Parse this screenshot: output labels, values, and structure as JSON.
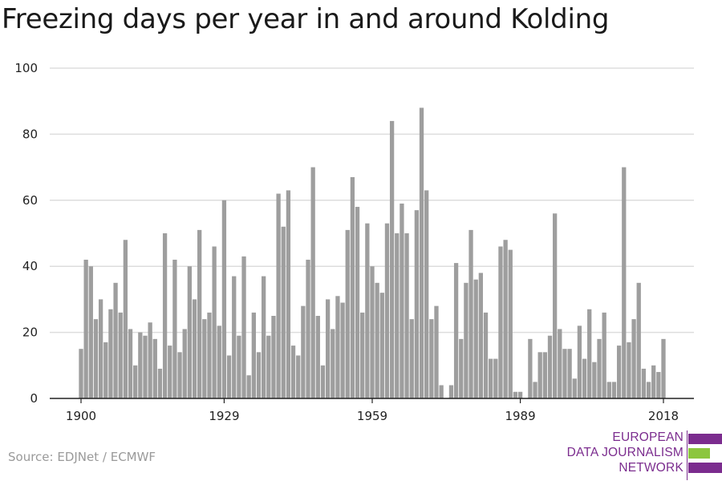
{
  "title": "Freezing days per year in and around Kolding",
  "source": "Source: EDJNet / ECMWF",
  "logo": {
    "lines": [
      "EUROPEAN",
      "DATA JOURNALISM",
      "NETWORK"
    ],
    "colors": {
      "purple": "#7b2c8e",
      "green": "#8cc63f"
    }
  },
  "colors": {
    "bar": "#9e9e9e",
    "grid": "#dddddd",
    "axis": "#222222",
    "tick_text": "#222222"
  },
  "chart_data": {
    "type": "bar",
    "title": "Freezing days per year in and around Kolding",
    "xlabel": "",
    "ylabel": "",
    "x_range": [
      1900,
      2018
    ],
    "ylim": [
      0,
      100
    ],
    "y_ticks": [
      0,
      20,
      40,
      60,
      80,
      100
    ],
    "x_ticks": [
      1900,
      1929,
      1959,
      1989,
      2018
    ],
    "grid": true,
    "x": [
      1900,
      1901,
      1902,
      1903,
      1904,
      1905,
      1906,
      1907,
      1908,
      1909,
      1910,
      1911,
      1912,
      1913,
      1914,
      1915,
      1916,
      1917,
      1918,
      1919,
      1920,
      1921,
      1922,
      1923,
      1924,
      1925,
      1926,
      1927,
      1928,
      1929,
      1930,
      1931,
      1932,
      1933,
      1934,
      1935,
      1936,
      1937,
      1938,
      1939,
      1940,
      1941,
      1942,
      1943,
      1944,
      1945,
      1946,
      1947,
      1948,
      1949,
      1950,
      1951,
      1952,
      1953,
      1954,
      1955,
      1956,
      1957,
      1958,
      1959,
      1960,
      1961,
      1962,
      1963,
      1964,
      1965,
      1966,
      1967,
      1968,
      1969,
      1970,
      1971,
      1972,
      1973,
      1974,
      1975,
      1976,
      1977,
      1978,
      1979,
      1980,
      1981,
      1982,
      1983,
      1984,
      1985,
      1986,
      1987,
      1988,
      1989,
      1990,
      1991,
      1992,
      1993,
      1994,
      1995,
      1996,
      1997,
      1998,
      1999,
      2000,
      2001,
      2002,
      2003,
      2004,
      2005,
      2006,
      2007,
      2008,
      2009,
      2010,
      2011,
      2012,
      2013,
      2014,
      2015,
      2016,
      2017,
      2018
    ],
    "values": [
      15,
      42,
      40,
      24,
      30,
      17,
      27,
      35,
      26,
      48,
      21,
      10,
      20,
      19,
      23,
      18,
      9,
      50,
      16,
      42,
      14,
      21,
      40,
      30,
      51,
      24,
      26,
      46,
      22,
      60,
      13,
      37,
      19,
      43,
      7,
      26,
      14,
      37,
      19,
      25,
      62,
      52,
      63,
      16,
      13,
      28,
      42,
      70,
      25,
      10,
      30,
      21,
      31,
      29,
      51,
      67,
      58,
      26,
      53,
      40,
      35,
      32,
      53,
      84,
      50,
      59,
      50,
      24,
      57,
      88,
      63,
      24,
      28,
      4,
      0,
      4,
      41,
      18,
      35,
      51,
      36,
      38,
      26,
      12,
      12,
      46,
      48,
      45,
      2,
      2,
      0,
      18,
      5,
      14,
      14,
      19,
      56,
      21,
      15,
      15,
      6,
      22,
      12,
      27,
      11,
      18,
      26,
      5,
      5,
      16,
      70,
      17,
      24,
      35,
      9,
      5,
      10,
      8,
      18
    ]
  }
}
